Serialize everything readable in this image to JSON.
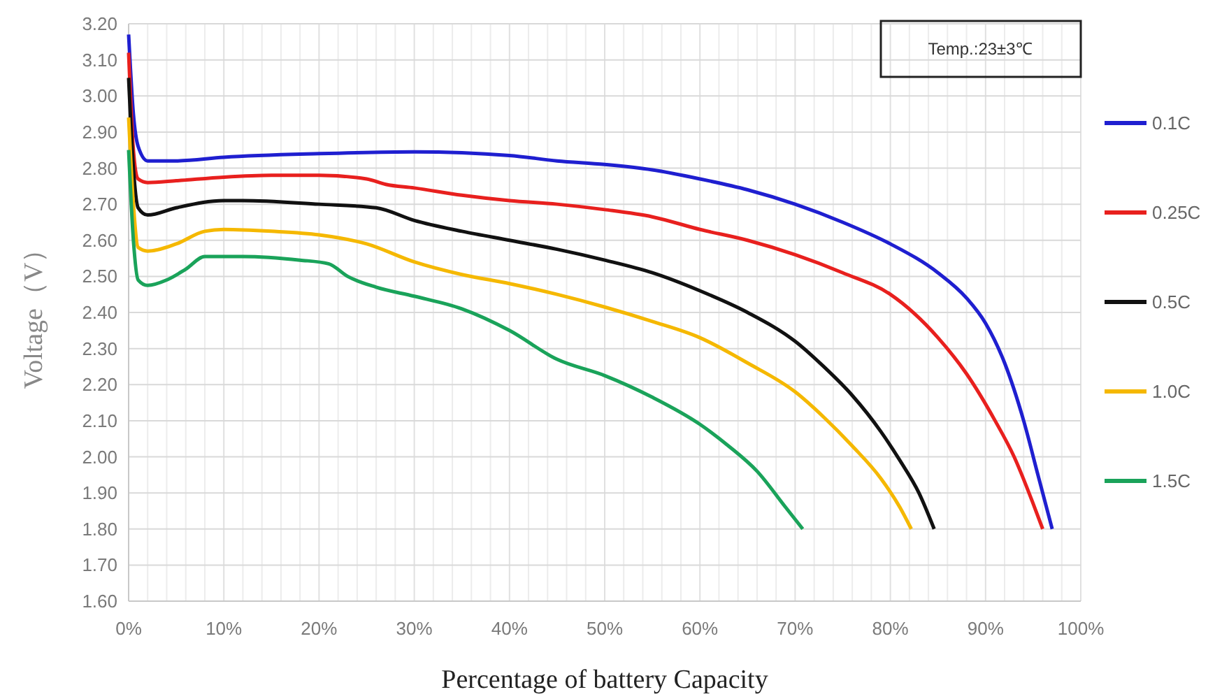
{
  "chart_data": {
    "type": "line",
    "xlabel": "Percentage of battery Capacity",
    "ylabel": "Voltage（V）",
    "annotations": [
      "Temp.:23±3℃"
    ],
    "xlim": [
      0,
      100
    ],
    "ylim": [
      1.6,
      3.2
    ],
    "xticks": [
      {
        "value": 0,
        "label": "0%"
      },
      {
        "value": 10,
        "label": "10%"
      },
      {
        "value": 20,
        "label": "20%"
      },
      {
        "value": 30,
        "label": "30%"
      },
      {
        "value": 40,
        "label": "40%"
      },
      {
        "value": 50,
        "label": "50%"
      },
      {
        "value": 60,
        "label": "60%"
      },
      {
        "value": 70,
        "label": "70%"
      },
      {
        "value": 80,
        "label": "80%"
      },
      {
        "value": 90,
        "label": "90%"
      },
      {
        "value": 100,
        "label": "100%"
      }
    ],
    "yticks": [
      {
        "value": 1.6,
        "label": "1.60"
      },
      {
        "value": 1.7,
        "label": "1.70"
      },
      {
        "value": 1.8,
        "label": "1.80"
      },
      {
        "value": 1.9,
        "label": "1.90"
      },
      {
        "value": 2.0,
        "label": "2.00"
      },
      {
        "value": 2.1,
        "label": "2.10"
      },
      {
        "value": 2.2,
        "label": "2.20"
      },
      {
        "value": 2.3,
        "label": "2.30"
      },
      {
        "value": 2.4,
        "label": "2.40"
      },
      {
        "value": 2.5,
        "label": "2.50"
      },
      {
        "value": 2.6,
        "label": "2.60"
      },
      {
        "value": 2.7,
        "label": "2.70"
      },
      {
        "value": 2.8,
        "label": "2.80"
      },
      {
        "value": 2.9,
        "label": "2.90"
      },
      {
        "value": 3.0,
        "label": "3.00"
      },
      {
        "value": 3.1,
        "label": "3.10"
      },
      {
        "value": 3.2,
        "label": "3.20"
      }
    ],
    "grid": true,
    "legend": "right",
    "marker": "none",
    "line_style": "solid",
    "series": [
      {
        "name": "0.1C",
        "color": "#1f1fd0",
        "x": [
          0,
          0.5,
          1,
          2,
          5,
          10,
          20,
          30,
          40,
          45,
          50,
          55,
          60,
          65,
          70,
          75,
          80,
          85,
          88,
          90,
          92,
          94,
          95.5,
          97
        ],
        "values": [
          3.17,
          2.95,
          2.86,
          2.82,
          2.82,
          2.83,
          2.84,
          2.845,
          2.835,
          2.82,
          2.81,
          2.795,
          2.77,
          2.74,
          2.7,
          2.65,
          2.59,
          2.51,
          2.44,
          2.37,
          2.26,
          2.1,
          1.95,
          1.8
        ]
      },
      {
        "name": "0.25C",
        "color": "#e8201e",
        "x": [
          0,
          0.5,
          1,
          2,
          5,
          10,
          15,
          20,
          25,
          27,
          30,
          35,
          40,
          45,
          50,
          55,
          60,
          65,
          70,
          75,
          80,
          85,
          88,
          91,
          93,
          95,
          96
        ],
        "values": [
          3.12,
          2.85,
          2.77,
          2.76,
          2.765,
          2.775,
          2.78,
          2.78,
          2.77,
          2.755,
          2.745,
          2.725,
          2.71,
          2.7,
          2.685,
          2.665,
          2.63,
          2.6,
          2.56,
          2.51,
          2.45,
          2.33,
          2.23,
          2.1,
          2.0,
          1.87,
          1.8
        ]
      },
      {
        "name": "0.5C",
        "color": "#111111",
        "x": [
          0,
          0.5,
          1,
          2,
          5,
          10,
          12,
          20,
          26,
          30,
          35,
          40,
          45,
          50,
          55,
          60,
          65,
          70,
          73,
          76,
          79,
          81,
          83,
          84.6
        ],
        "values": [
          3.05,
          2.8,
          2.69,
          2.67,
          2.69,
          2.71,
          2.71,
          2.7,
          2.69,
          2.655,
          2.625,
          2.6,
          2.575,
          2.545,
          2.51,
          2.46,
          2.4,
          2.32,
          2.25,
          2.17,
          2.07,
          1.99,
          1.9,
          1.8
        ]
      },
      {
        "name": "1.0C",
        "color": "#f5b800",
        "x": [
          0,
          0.5,
          1,
          2,
          5,
          8,
          10,
          15,
          20,
          25,
          30,
          35,
          40,
          45,
          50,
          55,
          60,
          65,
          70,
          73,
          76,
          79,
          81,
          82.2
        ],
        "values": [
          2.94,
          2.7,
          2.58,
          2.57,
          2.59,
          2.625,
          2.63,
          2.625,
          2.615,
          2.59,
          2.54,
          2.505,
          2.48,
          2.45,
          2.415,
          2.375,
          2.33,
          2.26,
          2.18,
          2.11,
          2.03,
          1.94,
          1.86,
          1.8
        ]
      },
      {
        "name": "1.5C",
        "color": "#1aa35a",
        "x": [
          0,
          0.5,
          1,
          2,
          4,
          6,
          8,
          12,
          18,
          21,
          23,
          26,
          30,
          35,
          40,
          45,
          50,
          55,
          60,
          63,
          66,
          69,
          70.8
        ],
        "values": [
          2.85,
          2.6,
          2.49,
          2.475,
          2.49,
          2.52,
          2.555,
          2.555,
          2.545,
          2.535,
          2.5,
          2.47,
          2.445,
          2.41,
          2.35,
          2.27,
          2.225,
          2.165,
          2.09,
          2.03,
          1.96,
          1.86,
          1.8
        ]
      }
    ]
  }
}
